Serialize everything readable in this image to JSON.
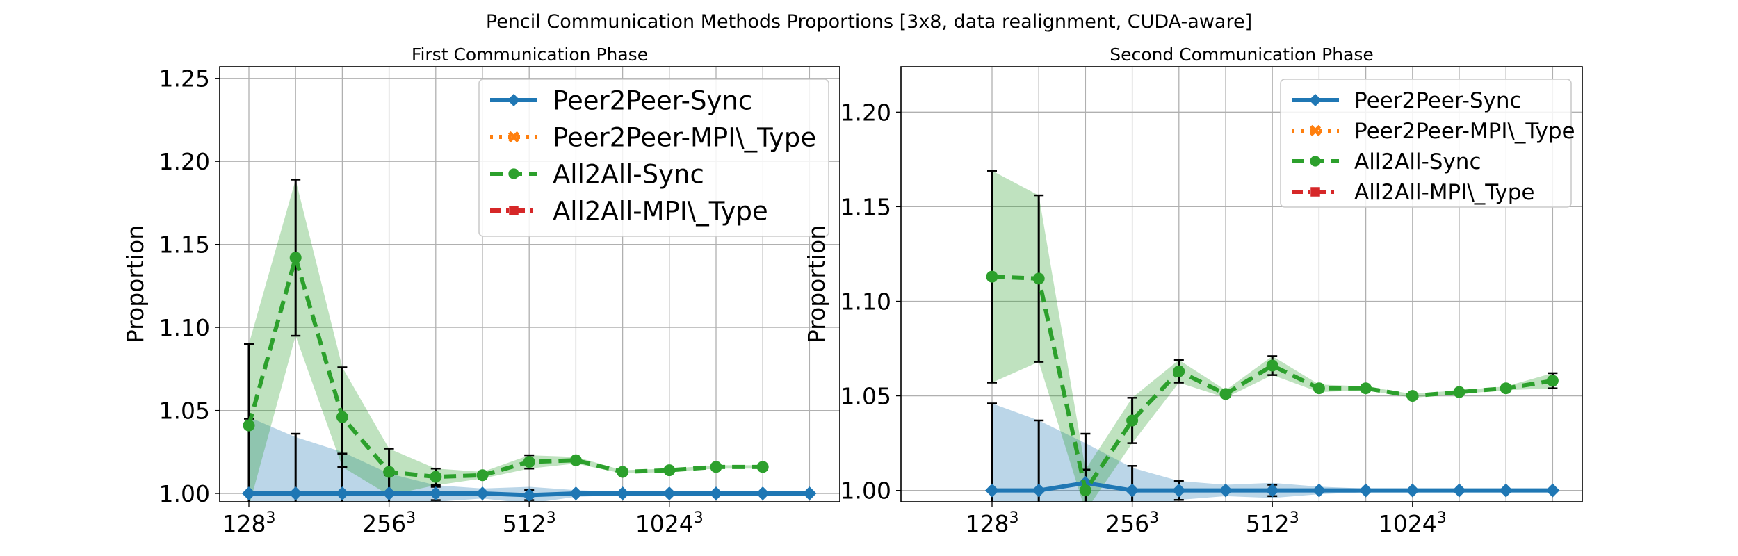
{
  "figure": {
    "title": "Pencil Communication Methods Proportions [3x8, data realignment, CUDA-aware]"
  },
  "colors": {
    "peer2peer_sync": "#1f77b4",
    "peer2peer_mpi_type": "#ff7f0e",
    "all2all_sync": "#2ca02c",
    "all2all_mpi_type": "#d62728",
    "grid": "#b0b0b0",
    "errorbar": "#000000"
  },
  "chart_data": [
    {
      "type": "line",
      "title": "First Communication Phase",
      "ylabel": "Proportion",
      "xlabel": "",
      "ylim": [
        0.995,
        1.257
      ],
      "yticks": [
        "1.00",
        "1.05",
        "1.10",
        "1.15",
        "1.20",
        "1.25"
      ],
      "x_ticks": [
        {
          "base": "128",
          "exp": "3",
          "index": 0
        },
        {
          "base": "256",
          "exp": "3",
          "index": 3
        },
        {
          "base": "512",
          "exp": "3",
          "index": 6
        },
        {
          "base": "1024",
          "exp": "3",
          "index": 9
        }
      ],
      "n_points": 13,
      "grid": true,
      "legend_position": "upper-right",
      "series": [
        {
          "name": "Peer2Peer-Sync",
          "color_key": "peer2peer_sync",
          "style": "solid",
          "marker": "diamond",
          "values": [
            1.0,
            1.0,
            1.0,
            1.0,
            1.0,
            1.0,
            0.999,
            1.0,
            1.0,
            1.0,
            1.0,
            1.0,
            1.0
          ],
          "band_upper": [
            1.046,
            1.034,
            1.025,
            1.012,
            1.005,
            1.003,
            1.004,
            1.002,
            1.001,
            1.001,
            1.001,
            1.0,
            1.0
          ],
          "err": [
            0.045,
            0.036,
            0.024,
            0.011,
            0.004,
            0.002,
            0.003,
            0.001,
            0.001,
            0.0,
            0.0,
            0.0,
            0.0
          ]
        },
        {
          "name": "Peer2Peer-MPI\\_Type",
          "color_key": "peer2peer_mpi_type",
          "style": "dotted",
          "marker": "x",
          "values": []
        },
        {
          "name": "All2All-Sync",
          "color_key": "all2all_sync",
          "style": "dashed",
          "marker": "circle",
          "values": [
            1.041,
            1.142,
            1.046,
            1.013,
            1.01,
            1.011,
            1.019,
            1.02,
            1.013,
            1.014,
            1.016,
            1.016
          ],
          "err": [
            0.049,
            0.047,
            0.03,
            0.014,
            0.005,
            0.002,
            0.004,
            0.002,
            0.001,
            0.001,
            0.001,
            0.001
          ]
        },
        {
          "name": "All2All-MPI\\_Type",
          "color_key": "all2all_mpi_type",
          "style": "dashdot",
          "marker": "square",
          "values": []
        }
      ]
    },
    {
      "type": "line",
      "title": "Second Communication Phase",
      "ylabel": "Proportion",
      "xlabel": "",
      "ylim": [
        0.994,
        1.224
      ],
      "yticks": [
        "1.00",
        "1.05",
        "1.10",
        "1.15",
        "1.20"
      ],
      "x_ticks": [
        {
          "base": "128",
          "exp": "3",
          "index": 0
        },
        {
          "base": "256",
          "exp": "3",
          "index": 3
        },
        {
          "base": "512",
          "exp": "3",
          "index": 6
        },
        {
          "base": "1024",
          "exp": "3",
          "index": 9
        }
      ],
      "n_points": 13,
      "grid": true,
      "legend_position": "upper-right",
      "series": [
        {
          "name": "Peer2Peer-Sync",
          "color_key": "peer2peer_sync",
          "style": "solid",
          "marker": "diamond",
          "values": [
            1.0,
            1.0,
            1.004,
            1.0,
            1.0,
            1.0,
            1.0,
            1.0,
            1.0,
            1.0,
            1.0,
            1.0,
            1.0
          ],
          "band_upper": [
            1.046,
            1.037,
            1.025,
            1.012,
            1.005,
            1.003,
            1.004,
            1.002,
            1.001,
            1.001,
            1.001,
            1.0,
            1.0
          ],
          "err": [
            0.046,
            0.037,
            0.026,
            0.013,
            0.005,
            0.002,
            0.003,
            0.001,
            0.001,
            0.0,
            0.0,
            0.0,
            0.0
          ]
        },
        {
          "name": "Peer2Peer-MPI\\_Type",
          "color_key": "peer2peer_mpi_type",
          "style": "dotted",
          "marker": "x",
          "values": []
        },
        {
          "name": "All2All-Sync",
          "color_key": "all2all_sync",
          "style": "dashed",
          "marker": "circle",
          "values": [
            1.113,
            1.112,
            1.0,
            1.037,
            1.063,
            1.051,
            1.066,
            1.054,
            1.054,
            1.05,
            1.052,
            1.054,
            1.058
          ],
          "err": [
            0.056,
            0.044,
            0.011,
            0.012,
            0.006,
            0.002,
            0.005,
            0.002,
            0.001,
            0.001,
            0.001,
            0.001,
            0.004
          ]
        },
        {
          "name": "All2All-MPI\\_Type",
          "color_key": "all2all_mpi_type",
          "style": "dashdot",
          "marker": "square",
          "values": []
        }
      ]
    }
  ]
}
